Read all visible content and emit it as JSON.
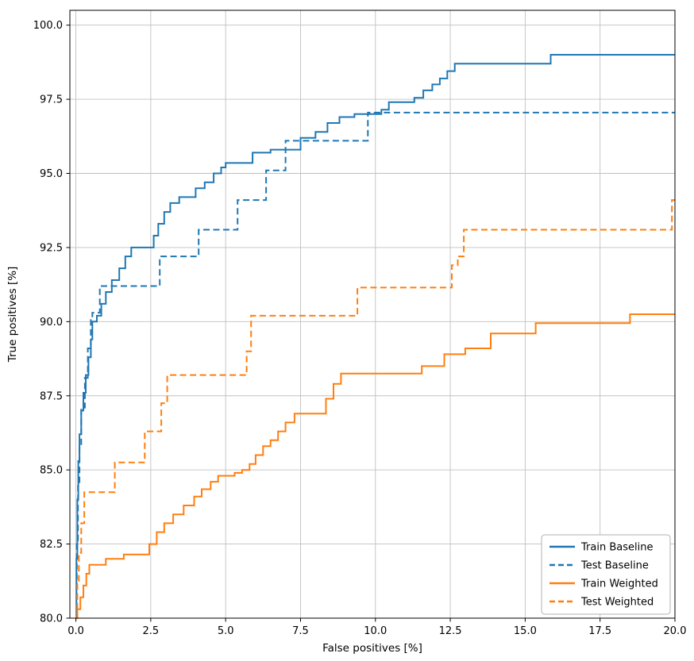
{
  "chart_data": {
    "type": "line",
    "subtype": "step-post",
    "title": "",
    "xlabel": "False positives [%]",
    "ylabel": "True positives [%]",
    "xlim": [
      -0.2,
      20
    ],
    "ylim": [
      80,
      100.5
    ],
    "xticks": [
      0.0,
      2.5,
      5.0,
      7.5,
      10.0,
      12.5,
      15.0,
      17.5,
      20.0
    ],
    "yticks": [
      80.0,
      82.5,
      85.0,
      87.5,
      90.0,
      92.5,
      95.0,
      97.5,
      100.0
    ],
    "grid": true,
    "grid_color": "#c0c0c0",
    "legend_position": "lower right",
    "series": [
      {
        "name": "Train Baseline",
        "color": "#1f77b4",
        "dash": "solid",
        "points": [
          [
            0.0,
            80.0
          ],
          [
            0.02,
            82.0
          ],
          [
            0.05,
            84.0
          ],
          [
            0.08,
            85.3
          ],
          [
            0.12,
            86.2
          ],
          [
            0.18,
            87.0
          ],
          [
            0.25,
            87.6
          ],
          [
            0.33,
            88.2
          ],
          [
            0.42,
            88.8
          ],
          [
            0.5,
            89.4
          ],
          [
            0.55,
            90.0
          ],
          [
            0.7,
            90.2
          ],
          [
            0.85,
            90.6
          ],
          [
            1.0,
            91.0
          ],
          [
            1.2,
            91.4
          ],
          [
            1.45,
            91.8
          ],
          [
            1.65,
            92.2
          ],
          [
            1.85,
            92.5
          ],
          [
            2.6,
            92.9
          ],
          [
            2.75,
            93.3
          ],
          [
            2.95,
            93.7
          ],
          [
            3.15,
            94.0
          ],
          [
            3.45,
            94.2
          ],
          [
            4.0,
            94.5
          ],
          [
            4.3,
            94.7
          ],
          [
            4.6,
            95.0
          ],
          [
            4.85,
            95.2
          ],
          [
            5.0,
            95.35
          ],
          [
            5.9,
            95.7
          ],
          [
            6.5,
            95.8
          ],
          [
            7.5,
            96.2
          ],
          [
            8.0,
            96.4
          ],
          [
            8.4,
            96.7
          ],
          [
            8.8,
            96.9
          ],
          [
            9.3,
            97.0
          ],
          [
            10.2,
            97.15
          ],
          [
            10.45,
            97.4
          ],
          [
            11.3,
            97.55
          ],
          [
            11.6,
            97.8
          ],
          [
            11.9,
            98.0
          ],
          [
            12.15,
            98.2
          ],
          [
            12.4,
            98.45
          ],
          [
            12.65,
            98.7
          ],
          [
            15.85,
            99.0
          ],
          [
            20.0,
            99.0
          ]
        ]
      },
      {
        "name": "Test Baseline",
        "color": "#1f77b4",
        "dash": "dashed",
        "points": [
          [
            0.0,
            80.0
          ],
          [
            0.03,
            82.5
          ],
          [
            0.07,
            84.5
          ],
          [
            0.12,
            85.8
          ],
          [
            0.18,
            87.1
          ],
          [
            0.3,
            88.1
          ],
          [
            0.4,
            89.1
          ],
          [
            0.5,
            90.1
          ],
          [
            0.55,
            90.3
          ],
          [
            0.8,
            91.2
          ],
          [
            2.8,
            92.2
          ],
          [
            4.1,
            93.1
          ],
          [
            5.4,
            94.1
          ],
          [
            6.35,
            95.1
          ],
          [
            7.0,
            96.1
          ],
          [
            9.75,
            97.05
          ],
          [
            20.0,
            97.05
          ]
        ]
      },
      {
        "name": "Train Weighted",
        "color": "#ff7f0e",
        "dash": "solid",
        "points": [
          [
            0.0,
            80.0
          ],
          [
            0.05,
            80.3
          ],
          [
            0.15,
            80.7
          ],
          [
            0.25,
            81.1
          ],
          [
            0.35,
            81.5
          ],
          [
            0.45,
            81.8
          ],
          [
            1.0,
            82.0
          ],
          [
            1.6,
            82.15
          ],
          [
            2.45,
            82.5
          ],
          [
            2.7,
            82.9
          ],
          [
            2.95,
            83.2
          ],
          [
            3.25,
            83.5
          ],
          [
            3.6,
            83.8
          ],
          [
            3.95,
            84.1
          ],
          [
            4.2,
            84.35
          ],
          [
            4.5,
            84.6
          ],
          [
            4.75,
            84.8
          ],
          [
            5.3,
            84.9
          ],
          [
            5.55,
            85.0
          ],
          [
            5.8,
            85.2
          ],
          [
            6.0,
            85.5
          ],
          [
            6.25,
            85.8
          ],
          [
            6.5,
            86.0
          ],
          [
            6.75,
            86.3
          ],
          [
            7.0,
            86.6
          ],
          [
            7.3,
            86.9
          ],
          [
            8.35,
            87.4
          ],
          [
            8.6,
            87.9
          ],
          [
            8.85,
            88.25
          ],
          [
            11.55,
            88.5
          ],
          [
            12.3,
            88.9
          ],
          [
            13.0,
            89.1
          ],
          [
            13.85,
            89.6
          ],
          [
            15.35,
            89.95
          ],
          [
            18.5,
            90.25
          ],
          [
            20.0,
            90.25
          ]
        ]
      },
      {
        "name": "Test Weighted",
        "color": "#ff7f0e",
        "dash": "dashed",
        "points": [
          [
            0.0,
            80.0
          ],
          [
            0.05,
            81.2
          ],
          [
            0.1,
            82.2
          ],
          [
            0.18,
            83.2
          ],
          [
            0.28,
            84.25
          ],
          [
            1.3,
            85.25
          ],
          [
            2.3,
            86.3
          ],
          [
            2.85,
            87.25
          ],
          [
            3.05,
            88.2
          ],
          [
            5.7,
            89.0
          ],
          [
            5.85,
            90.2
          ],
          [
            9.4,
            91.15
          ],
          [
            12.55,
            91.9
          ],
          [
            12.75,
            92.2
          ],
          [
            12.95,
            93.1
          ],
          [
            19.9,
            94.1
          ],
          [
            20.0,
            94.1
          ]
        ]
      }
    ],
    "legend_items": [
      "Train Baseline",
      "Test Baseline",
      "Train Weighted",
      "Test Weighted"
    ]
  }
}
